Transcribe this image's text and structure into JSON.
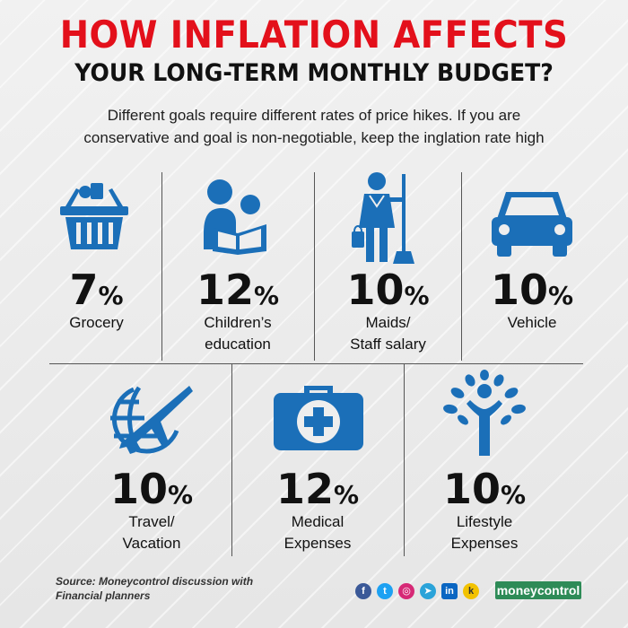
{
  "header": {
    "title_line1": "HOW INFLATION AFFECTS",
    "title_line2": "YOUR LONG-TERM MONTHLY BUDGET?",
    "subtitle_line1": "Different goals require different rates of price hikes. If you are",
    "subtitle_line2": "conservative and goal is non-negotiable, keep the inglation rate high"
  },
  "items": [
    {
      "value": "7",
      "unit": "%",
      "label_line1": "Grocery",
      "label_line2": "",
      "icon": "basket-icon"
    },
    {
      "value": "12",
      "unit": "%",
      "label_line1": "Children’s",
      "label_line2": "education",
      "icon": "reading-icon"
    },
    {
      "value": "10",
      "unit": "%",
      "label_line1": "Maids/",
      "label_line2": "Staff salary",
      "icon": "maid-icon"
    },
    {
      "value": "10",
      "unit": "%",
      "label_line1": "Vehicle",
      "label_line2": "",
      "icon": "car-icon"
    },
    {
      "value": "10",
      "unit": "%",
      "label_line1": "Travel/",
      "label_line2": "Vacation",
      "icon": "globe-plane-icon"
    },
    {
      "value": "12",
      "unit": "%",
      "label_line1": "Medical",
      "label_line2": "Expenses",
      "icon": "first-aid-kit-icon"
    },
    {
      "value": "10",
      "unit": "%",
      "label_line1": "Lifestyle",
      "label_line2": "Expenses",
      "icon": "person-tree-icon"
    }
  ],
  "footer": {
    "source_line1": "Source: Moneycontrol discussion with",
    "source_line2": "Financial planners",
    "brand": "moneycontrol",
    "social_icons": [
      "facebook-icon",
      "twitter-icon",
      "instagram-icon",
      "telegram-icon",
      "linkedin-icon",
      "koo-icon"
    ]
  },
  "colors": {
    "title_red": "#e3101b",
    "icon_blue": "#1b6fb8",
    "brand_green": "#2e8b57"
  }
}
